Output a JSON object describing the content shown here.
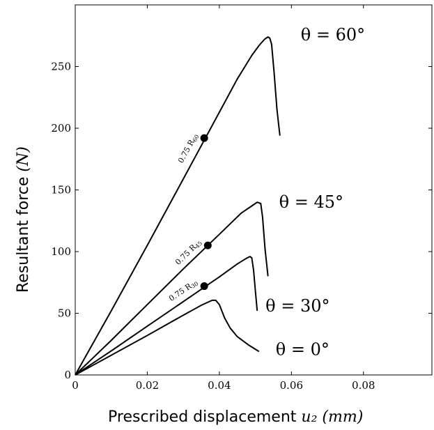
{
  "chart_data": {
    "type": "line",
    "xlabel": "Prescribed displacement",
    "xlabel_math": "u₂ (mm)",
    "ylabel": "Resultant force",
    "ylabel_math": "(N)",
    "xlim": [
      0,
      0.099
    ],
    "ylim": [
      0,
      300
    ],
    "x_ticks": [
      0,
      0.02,
      0.04,
      0.06,
      0.08
    ],
    "x_tick_labels": [
      "0",
      "0.02",
      "0.04",
      "0.06",
      "0.08"
    ],
    "y_ticks": [
      0,
      50,
      100,
      150,
      200,
      250
    ],
    "y_tick_labels": [
      "0",
      "50",
      "100",
      "150",
      "200",
      "250"
    ],
    "grid": false,
    "series": [
      {
        "name": "θ = 60°",
        "x": [
          0,
          0.01,
          0.02,
          0.03,
          0.04,
          0.045,
          0.049,
          0.051,
          0.0525,
          0.0535,
          0.054,
          0.0545,
          0.0552,
          0.056,
          0.0568
        ],
        "y": [
          0,
          52,
          105,
          159,
          213,
          240,
          259,
          267,
          272,
          274,
          273,
          268,
          245,
          215,
          194
        ]
      },
      {
        "name": "θ = 45°",
        "x": [
          0,
          0.01,
          0.02,
          0.03,
          0.04,
          0.046,
          0.049,
          0.0505,
          0.0515,
          0.052,
          0.0527,
          0.0535
        ],
        "y": [
          0,
          28,
          57,
          86,
          114,
          131,
          137,
          140,
          139,
          128,
          102,
          80
        ]
      },
      {
        "name": "θ = 30°",
        "x": [
          0,
          0.01,
          0.02,
          0.03,
          0.04,
          0.045,
          0.0475,
          0.0485,
          0.049,
          0.0495,
          0.05,
          0.0505
        ],
        "y": [
          0,
          19.5,
          39.5,
          59.5,
          79.5,
          90,
          94.5,
          96,
          95,
          85,
          68,
          52
        ]
      },
      {
        "name": "θ = 0°",
        "x": [
          0,
          0.01,
          0.02,
          0.03,
          0.035,
          0.038,
          0.039,
          0.04,
          0.0415,
          0.043,
          0.045,
          0.048,
          0.051
        ],
        "y": [
          0,
          16,
          32,
          48.5,
          56.5,
          60.5,
          60.5,
          57,
          46,
          38,
          31,
          24.5,
          19
        ]
      }
    ],
    "annotations": [
      {
        "series": "θ = 60°",
        "label": "0.75 R",
        "subscript": "60",
        "x": 0.0358,
        "y": 192
      },
      {
        "series": "θ = 45°",
        "label": "0.75 R",
        "subscript": "45",
        "x": 0.0368,
        "y": 105
      },
      {
        "series": "θ = 30°",
        "label": "0.75 R",
        "subscript": "30",
        "x": 0.0358,
        "y": 72
      }
    ]
  }
}
